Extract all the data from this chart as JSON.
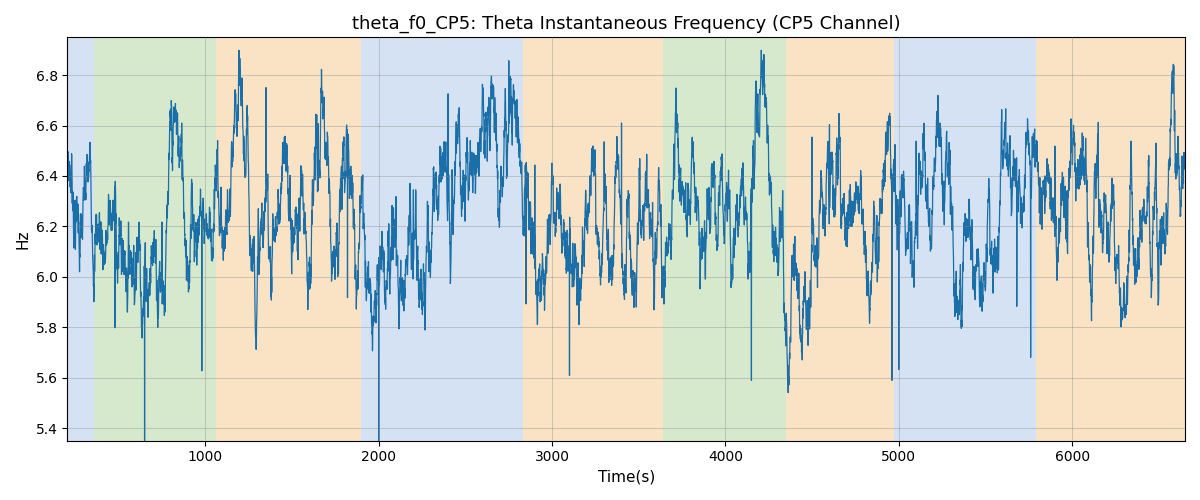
{
  "title": "theta_f0_CP5: Theta Instantaneous Frequency (CP5 Channel)",
  "xlabel": "Time(s)",
  "ylabel": "Hz",
  "ylim": [
    5.35,
    6.95
  ],
  "xlim": [
    205,
    6650
  ],
  "xticks": [
    1000,
    2000,
    3000,
    4000,
    5000,
    6000
  ],
  "yticks": [
    5.4,
    5.6,
    5.8,
    6.0,
    6.2,
    6.4,
    6.6,
    6.8
  ],
  "line_color": "#1a6fa8",
  "line_width": 0.9,
  "background_regions": [
    {
      "xmin": 205,
      "xmax": 360,
      "color": "#adc6e8",
      "alpha": 0.5
    },
    {
      "xmin": 360,
      "xmax": 1060,
      "color": "#aed49a",
      "alpha": 0.5
    },
    {
      "xmin": 1060,
      "xmax": 1900,
      "color": "#f5c98a",
      "alpha": 0.5
    },
    {
      "xmin": 1900,
      "xmax": 2700,
      "color": "#adc6e8",
      "alpha": 0.5
    },
    {
      "xmin": 2700,
      "xmax": 2830,
      "color": "#adc6e8",
      "alpha": 0.5
    },
    {
      "xmin": 2830,
      "xmax": 3640,
      "color": "#f5c98a",
      "alpha": 0.5
    },
    {
      "xmin": 3640,
      "xmax": 4350,
      "color": "#aed49a",
      "alpha": 0.5
    },
    {
      "xmin": 4350,
      "xmax": 4970,
      "color": "#f5c98a",
      "alpha": 0.5
    },
    {
      "xmin": 4970,
      "xmax": 5790,
      "color": "#adc6e8",
      "alpha": 0.5
    },
    {
      "xmin": 5790,
      "xmax": 6650,
      "color": "#f5c98a",
      "alpha": 0.5
    }
  ],
  "figsize": [
    12.0,
    5.0
  ],
  "dpi": 100
}
